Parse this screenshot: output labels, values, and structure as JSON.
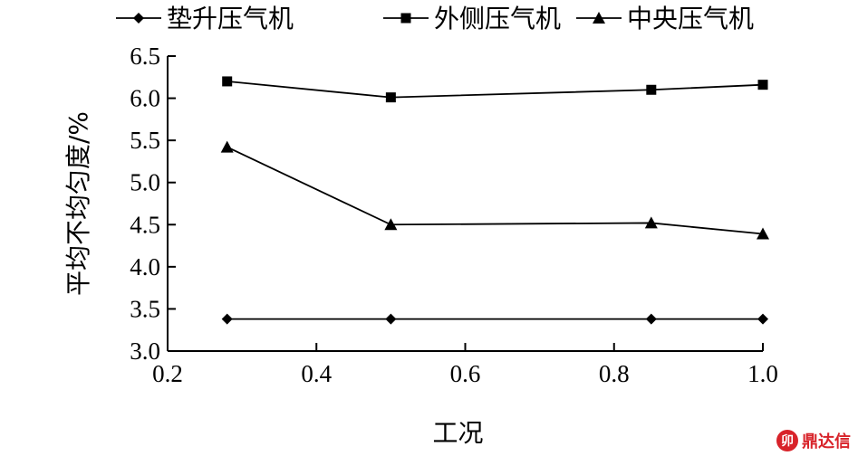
{
  "chart_data": {
    "type": "line",
    "xlabel": "工况",
    "ylabel": "平均不均匀度/%",
    "xlim": [
      0.2,
      1.0
    ],
    "ylim": [
      3.0,
      6.5
    ],
    "xticks": [
      "0.2",
      "0.4",
      "0.6",
      "0.8",
      "1.0"
    ],
    "yticks": [
      "3.0",
      "3.5",
      "4.0",
      "4.5",
      "5.0",
      "5.5",
      "6.0",
      "6.5"
    ],
    "xtick_values": [
      0.2,
      0.4,
      0.6,
      0.8,
      1.0
    ],
    "ytick_values": [
      3.0,
      3.5,
      4.0,
      4.5,
      5.0,
      5.5,
      6.0,
      6.5
    ],
    "legend_position": "top",
    "grid": false,
    "x": [
      0.28,
      0.5,
      0.85,
      1.0
    ],
    "series": [
      {
        "name": "垫升压气机",
        "marker": "diamond",
        "values": [
          3.38,
          3.38,
          3.38,
          3.38
        ]
      },
      {
        "name": "外侧压气机",
        "marker": "square",
        "values": [
          6.2,
          6.01,
          6.1,
          6.16
        ]
      },
      {
        "name": "中央压气机",
        "marker": "triangle",
        "values": [
          5.42,
          4.5,
          4.52,
          4.39
        ]
      }
    ]
  },
  "watermark": {
    "badge": "卯",
    "text": "鼎达信"
  }
}
